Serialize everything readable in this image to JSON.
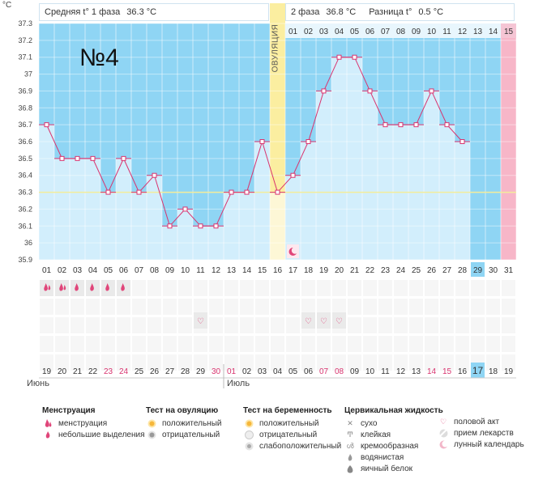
{
  "header": {
    "y_unit": "°C",
    "phase1_label": "Средняя t° 1 фаза",
    "phase1_value": "36.3 °C",
    "phase2_label": "2 фаза",
    "phase2_value": "36.8 °C",
    "diff_label": "Разница t°",
    "diff_value": "0.5 °C"
  },
  "overlay_text": "№4",
  "ovulation_label": "ОВУЛЯЦИЯ",
  "chart_data": {
    "type": "line",
    "title": "",
    "ylabel": "°C",
    "ylim": [
      35.9,
      37.3
    ],
    "yticks": [
      "35.9",
      "36",
      "36.1",
      "36.2",
      "36.3",
      "36.4",
      "36.5",
      "36.6",
      "36.7",
      "36.8",
      "36.9",
      "37",
      "37.1",
      "37.2",
      "37.3"
    ],
    "cycle_day_labels": [
      "01",
      "02",
      "03",
      "04",
      "05",
      "06",
      "07",
      "08",
      "09",
      "10",
      "11",
      "12",
      "13",
      "14",
      "15",
      "16",
      "17",
      "18",
      "19",
      "20",
      "21",
      "22",
      "23",
      "24",
      "25",
      "26",
      "27",
      "28",
      "29",
      "30",
      "31"
    ],
    "top_day_labels": [
      "01",
      "02",
      "03",
      "04",
      "05",
      "06",
      "07",
      "08",
      "09",
      "10",
      "11",
      "12",
      "13",
      "14",
      "15"
    ],
    "calendar_dates": [
      "19",
      "20",
      "21",
      "22",
      "23",
      "24",
      "25",
      "26",
      "27",
      "28",
      "29",
      "30",
      "01",
      "02",
      "03",
      "04",
      "05",
      "06",
      "07",
      "08",
      "09",
      "10",
      "11",
      "12",
      "13",
      "14",
      "15",
      "16",
      "17",
      "18",
      "19"
    ],
    "weekend_indices": [
      4,
      5,
      11,
      12,
      18,
      19,
      25,
      26
    ],
    "today_cycle_day": "29",
    "today_calendar": "17",
    "months": [
      "Июнь",
      "Июль"
    ],
    "series": [
      {
        "values": [
          36.7,
          36.5,
          36.5,
          36.5,
          36.3,
          36.5,
          36.3,
          36.4,
          36.1,
          36.2,
          36.1,
          36.1,
          36.3,
          36.3,
          36.6,
          36.3,
          36.4,
          36.6,
          36.9,
          37.1,
          37.1,
          36.9,
          36.7,
          36.7,
          36.7,
          36.9,
          36.7,
          36.6
        ]
      }
    ],
    "coverline": 36.3,
    "ovulation_day": 16,
    "menstruation_days": [
      1,
      2,
      3,
      4,
      5,
      6
    ],
    "heavy_menstruation_days": [
      1,
      2
    ],
    "intercourse_days": [
      11,
      18,
      19,
      20
    ],
    "moon_day": 17
  },
  "legend": {
    "menstruation": {
      "title": "Менструация",
      "items": [
        "менструация",
        "небольшие выделения"
      ]
    },
    "ovulation_test": {
      "title": "Тест на овуляцию",
      "items": [
        "положительный",
        "отрицательный"
      ]
    },
    "pregnancy_test": {
      "title": "Тест на беременность",
      "items": [
        "положительный",
        "отрицательный",
        "слабоположительный"
      ]
    },
    "cervical": {
      "title": "Цервикальная жидкость",
      "items": [
        "сухо",
        "клейкая",
        "кремообразная",
        "водянистая",
        "яичный белок"
      ]
    },
    "other": {
      "items": [
        "половой акт",
        "прием лекарств",
        "лунный календарь"
      ]
    }
  },
  "colors": {
    "plot_bg": "#8fd5f4",
    "bar_fill": "#d2eefc",
    "ovulation_band": "#fbeea0",
    "pink_col": "#f7b6c8",
    "line": "#d9346f",
    "weekend_text": "#d9346f",
    "today_bg": "#8fd5f4"
  }
}
